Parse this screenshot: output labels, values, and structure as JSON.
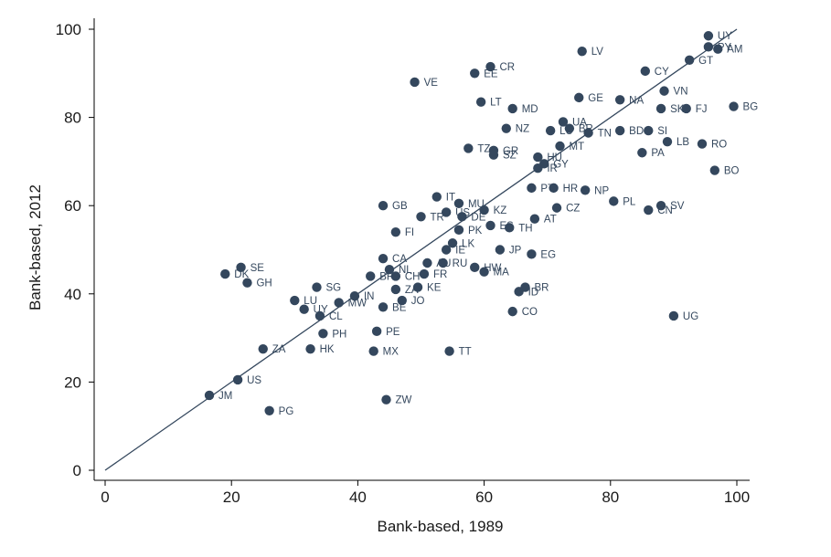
{
  "chart_data": {
    "type": "scatter",
    "title": "",
    "xlabel": "Bank-based, 1989",
    "ylabel": "Bank-based, 2012",
    "xlim": [
      0,
      100
    ],
    "ylim": [
      0,
      100
    ],
    "xticks": [
      "0",
      "20",
      "40",
      "60",
      "80",
      "100"
    ],
    "yticks": [
      "0",
      "20",
      "40",
      "60",
      "80",
      "100"
    ],
    "grid": false,
    "legend": "none",
    "fit_line": {
      "x": [
        0,
        100
      ],
      "y": [
        0,
        100
      ]
    },
    "colors": {
      "marker": "#34475d",
      "label": "#34475d",
      "line": "#34475d",
      "axis": "#000000"
    },
    "points": [
      {
        "label": "UY",
        "x": 95.5,
        "y": 98.5
      },
      {
        "label": "PY",
        "x": 95.5,
        "y": 96
      },
      {
        "label": "AM",
        "x": 97,
        "y": 95.5
      },
      {
        "label": "GT",
        "x": 92.5,
        "y": 93
      },
      {
        "label": "LV",
        "x": 75.5,
        "y": 95
      },
      {
        "label": "CR",
        "x": 61,
        "y": 91.5
      },
      {
        "label": "EE",
        "x": 58.5,
        "y": 90
      },
      {
        "label": "VE",
        "x": 49,
        "y": 88
      },
      {
        "label": "CY",
        "x": 85.5,
        "y": 90.5
      },
      {
        "label": "VN",
        "x": 88.5,
        "y": 86
      },
      {
        "label": "GE",
        "x": 75,
        "y": 84.5
      },
      {
        "label": "NA",
        "x": 81.5,
        "y": 84
      },
      {
        "label": "LT",
        "x": 59.5,
        "y": 83.5
      },
      {
        "label": "MD",
        "x": 64.5,
        "y": 82
      },
      {
        "label": "SK",
        "x": 88,
        "y": 82
      },
      {
        "label": "FJ",
        "x": 92,
        "y": 82
      },
      {
        "label": "BG",
        "x": 99.5,
        "y": 82.5
      },
      {
        "label": "UA",
        "x": 72.5,
        "y": 79
      },
      {
        "label": "NZ",
        "x": 63.5,
        "y": 77.5
      },
      {
        "label": "LU",
        "x": 70.5,
        "y": 77
      },
      {
        "label": "BR",
        "x": 73.5,
        "y": 77.5
      },
      {
        "label": "TN",
        "x": 76.5,
        "y": 76.5
      },
      {
        "label": "BD",
        "x": 81.5,
        "y": 77
      },
      {
        "label": "SI",
        "x": 86,
        "y": 77
      },
      {
        "label": "LB",
        "x": 89,
        "y": 74.5
      },
      {
        "label": "RO",
        "x": 94.5,
        "y": 74
      },
      {
        "label": "TZ",
        "x": 57.5,
        "y": 73
      },
      {
        "label": "GR",
        "x": 61.5,
        "y": 72.5
      },
      {
        "label": "SZ",
        "x": 61.5,
        "y": 71.5
      },
      {
        "label": "MT",
        "x": 72,
        "y": 73.5
      },
      {
        "label": "HU",
        "x": 68.5,
        "y": 71
      },
      {
        "label": "GY",
        "x": 69.5,
        "y": 69.5
      },
      {
        "label": "IR",
        "x": 68.5,
        "y": 68.5
      },
      {
        "label": "PA",
        "x": 85,
        "y": 72
      },
      {
        "label": "BO",
        "x": 96.5,
        "y": 68
      },
      {
        "label": "PT",
        "x": 67.5,
        "y": 64
      },
      {
        "label": "HR",
        "x": 71,
        "y": 64
      },
      {
        "label": "NP",
        "x": 76,
        "y": 63.5
      },
      {
        "label": "PL",
        "x": 80.5,
        "y": 61
      },
      {
        "label": "SV",
        "x": 88,
        "y": 60
      },
      {
        "label": "CN",
        "x": 86,
        "y": 59
      },
      {
        "label": "CZ",
        "x": 71.5,
        "y": 59.5
      },
      {
        "label": "IT",
        "x": 52.5,
        "y": 62
      },
      {
        "label": "GB",
        "x": 44,
        "y": 60
      },
      {
        "label": "MU",
        "x": 56,
        "y": 60.5
      },
      {
        "label": "TR",
        "x": 50,
        "y": 57.5
      },
      {
        "label": "US",
        "x": 54,
        "y": 58.5
      },
      {
        "label": "KZ",
        "x": 60,
        "y": 59
      },
      {
        "label": "DE",
        "x": 56.5,
        "y": 57.5
      },
      {
        "label": "AT",
        "x": 68,
        "y": 57
      },
      {
        "label": "ES",
        "x": 61,
        "y": 55.5
      },
      {
        "label": "PK",
        "x": 56,
        "y": 54.5
      },
      {
        "label": "TH",
        "x": 64,
        "y": 55
      },
      {
        "label": "FI",
        "x": 46,
        "y": 54
      },
      {
        "label": "LK",
        "x": 55,
        "y": 51.5
      },
      {
        "label": "IE",
        "x": 54,
        "y": 50
      },
      {
        "label": "JP",
        "x": 62.5,
        "y": 50
      },
      {
        "label": "EG",
        "x": 67.5,
        "y": 49
      },
      {
        "label": "CA",
        "x": 44,
        "y": 48
      },
      {
        "label": "AU",
        "x": 51,
        "y": 47
      },
      {
        "label": "RU",
        "x": 53.5,
        "y": 47
      },
      {
        "label": "NL",
        "x": 45,
        "y": 45.5
      },
      {
        "label": "FR",
        "x": 50.5,
        "y": 44.5
      },
      {
        "label": "CH",
        "x": 46,
        "y": 44
      },
      {
        "label": "BR",
        "x": 42,
        "y": 44
      },
      {
        "label": "HW",
        "x": 58.5,
        "y": 46
      },
      {
        "label": "MA",
        "x": 60,
        "y": 45
      },
      {
        "label": "DK",
        "x": 19,
        "y": 44.5
      },
      {
        "label": "SE",
        "x": 21.5,
        "y": 46
      },
      {
        "label": "GH",
        "x": 22.5,
        "y": 42.5
      },
      {
        "label": "SG",
        "x": 33.5,
        "y": 41.5
      },
      {
        "label": "ZA",
        "x": 46,
        "y": 41
      },
      {
        "label": "KE",
        "x": 49.5,
        "y": 41.5
      },
      {
        "label": "ID",
        "x": 65.5,
        "y": 40.5
      },
      {
        "label": "BR",
        "x": 66.5,
        "y": 41.5
      },
      {
        "label": "IN",
        "x": 39.5,
        "y": 39.5
      },
      {
        "label": "JO",
        "x": 47,
        "y": 38.5
      },
      {
        "label": "LU",
        "x": 30,
        "y": 38.5
      },
      {
        "label": "MW",
        "x": 37,
        "y": 38
      },
      {
        "label": "UY",
        "x": 31.5,
        "y": 36.5
      },
      {
        "label": "CL",
        "x": 34,
        "y": 35
      },
      {
        "label": "BE",
        "x": 44,
        "y": 37
      },
      {
        "label": "CO",
        "x": 64.5,
        "y": 36
      },
      {
        "label": "UG",
        "x": 90,
        "y": 35
      },
      {
        "label": "PH",
        "x": 34.5,
        "y": 31
      },
      {
        "label": "PE",
        "x": 43,
        "y": 31.5
      },
      {
        "label": "ZA",
        "x": 25,
        "y": 27.5
      },
      {
        "label": "HK",
        "x": 32.5,
        "y": 27.5
      },
      {
        "label": "MX",
        "x": 42.5,
        "y": 27
      },
      {
        "label": "TT",
        "x": 54.5,
        "y": 27
      },
      {
        "label": "US",
        "x": 21,
        "y": 20.5
      },
      {
        "label": "JM",
        "x": 16.5,
        "y": 17
      },
      {
        "label": "ZW",
        "x": 44.5,
        "y": 16
      },
      {
        "label": "PG",
        "x": 26,
        "y": 13.5
      }
    ]
  }
}
